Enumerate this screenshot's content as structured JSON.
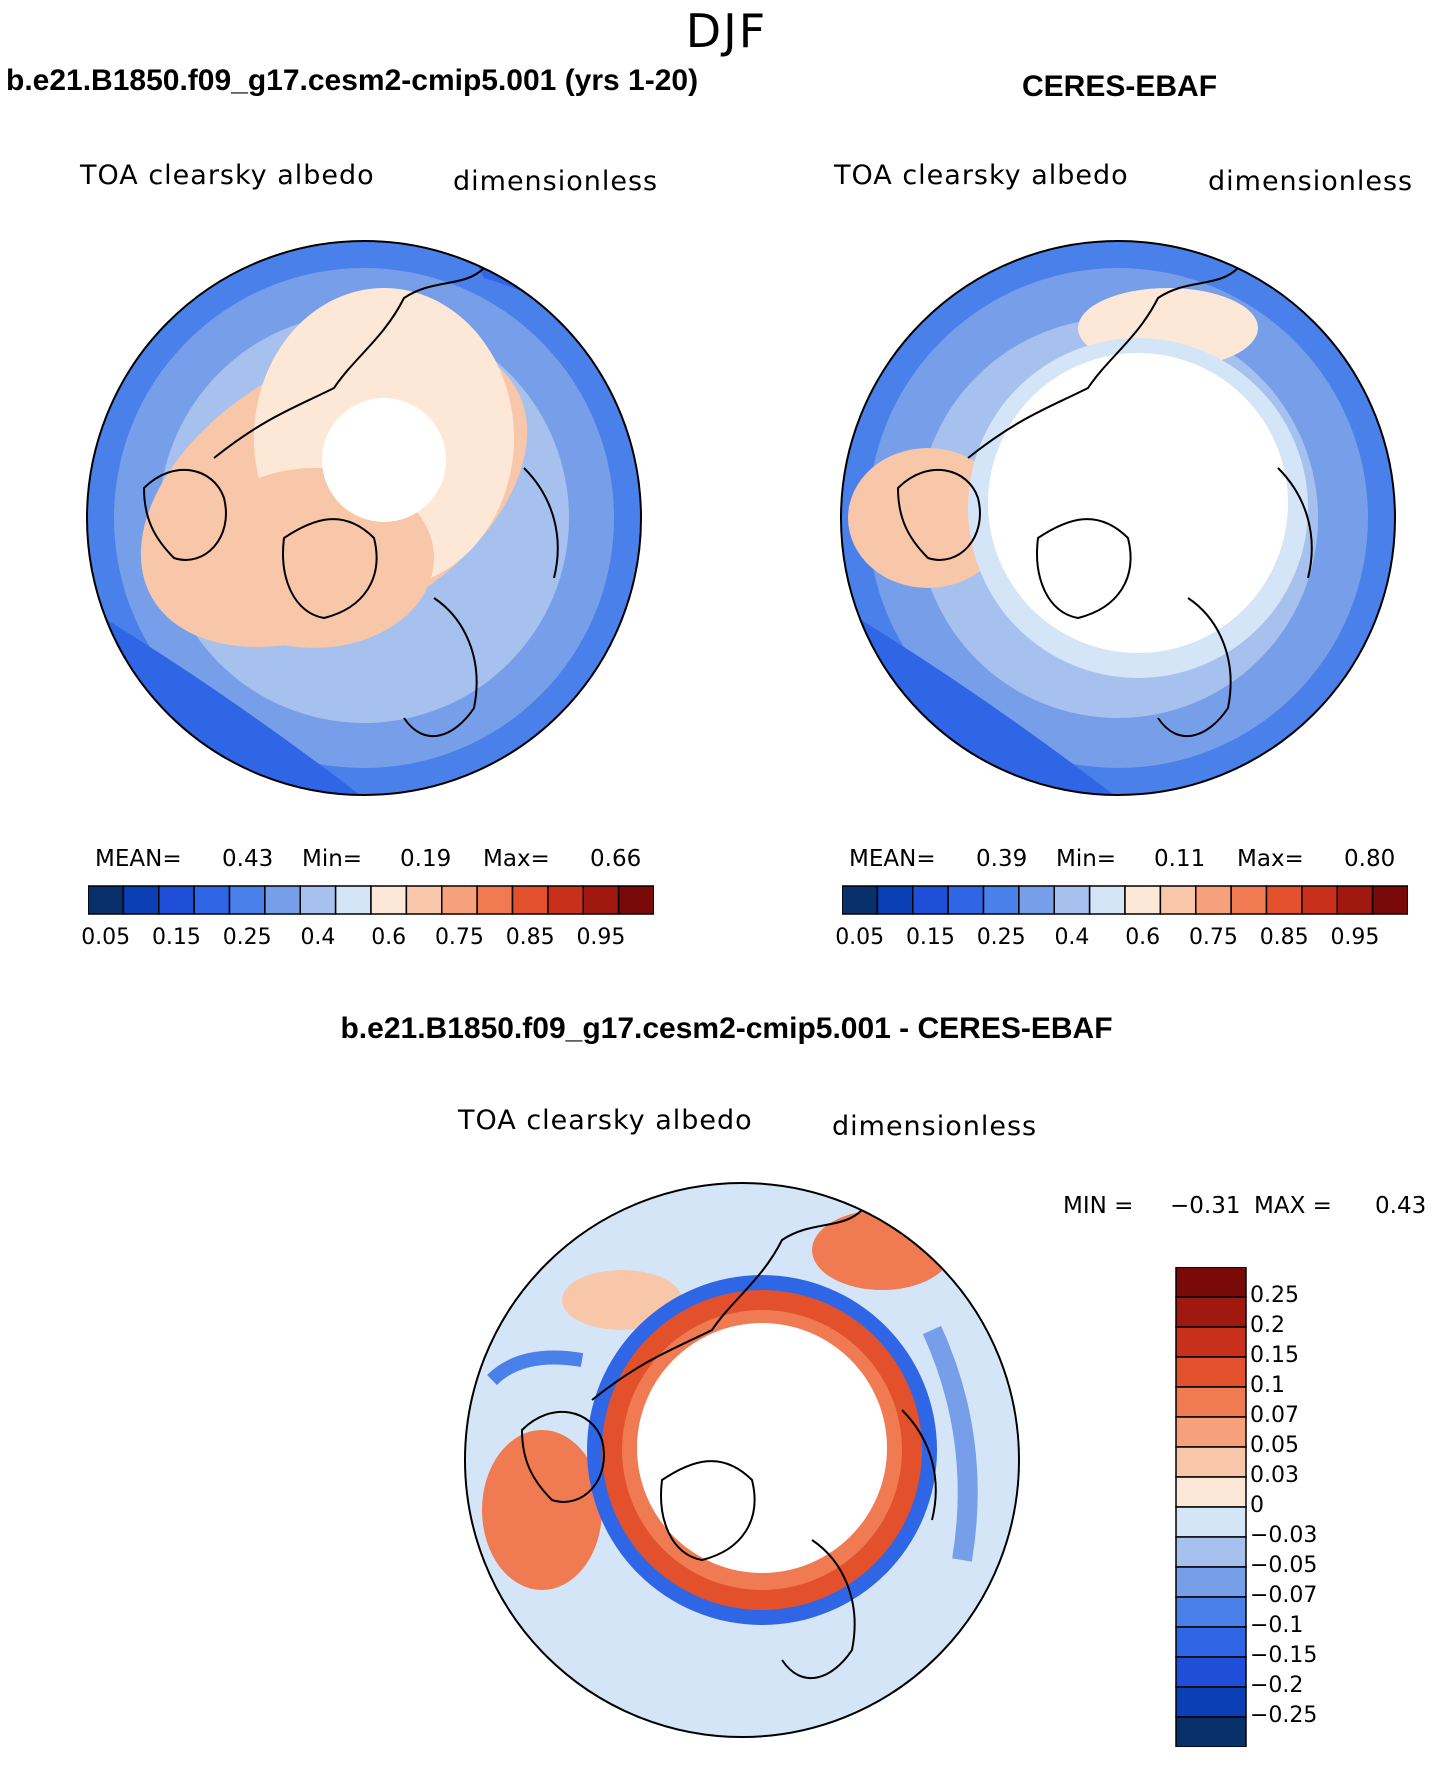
{
  "season": "DJF",
  "palette": [
    "#08306b",
    "#0a3fb5",
    "#1f4fd8",
    "#2f66e6",
    "#4a80ea",
    "#779ee8",
    "#a6c1ee",
    "#d5e5f8",
    "#fde8d8",
    "#f8c6a8",
    "#f6a07c",
    "#f07a52",
    "#e2502c",
    "#c8301c",
    "#a01810",
    "#7a0a08"
  ],
  "panels": {
    "model": {
      "title": "b.e21.B1850.f09_g17.cesm2-cmip5.001 (yrs 1-20)",
      "variable": "TOA clearsky albedo",
      "units": "dimensionless",
      "mean_label": "MEAN=",
      "mean": "0.43",
      "min_label": "Min=",
      "min": "0.19",
      "max_label": "Max=",
      "max": "0.66"
    },
    "obs": {
      "title": "CERES-EBAF",
      "variable": "TOA clearsky albedo",
      "units": "dimensionless",
      "mean_label": "MEAN=",
      "mean": "0.39",
      "min_label": "Min=",
      "min": "0.11",
      "max_label": "Max=",
      "max": "0.80"
    },
    "diff": {
      "title": "b.e21.B1850.f09_g17.cesm2-cmip5.001 - CERES-EBAF",
      "variable": "TOA clearsky albedo",
      "units": "dimensionless",
      "min_label": "MIN =",
      "min": "−0.31",
      "max_label": "MAX =",
      "max": "0.43"
    }
  },
  "chart_data": [
    {
      "type": "heatmap",
      "title": "b.e21.B1850.f09_g17.cesm2-cmip5.001 (yrs 1-20)",
      "variable": "TOA clearsky albedo",
      "projection": "north polar stereographic",
      "stats": {
        "mean": 0.43,
        "min": 0.19,
        "max": 0.66
      },
      "levels": [
        0.05,
        0.1,
        0.15,
        0.2,
        0.25,
        0.3,
        0.4,
        0.5,
        0.6,
        0.7,
        0.75,
        0.8,
        0.85,
        0.9,
        0.95
      ],
      "colorbar_tick_labels": [
        "0.05",
        "0.15",
        "0.25",
        "0.4",
        "0.6",
        "0.75",
        "0.85",
        "0.95"
      ]
    },
    {
      "type": "heatmap",
      "title": "CERES-EBAF",
      "variable": "TOA clearsky albedo",
      "projection": "north polar stereographic",
      "stats": {
        "mean": 0.39,
        "min": 0.11,
        "max": 0.8
      },
      "levels": [
        0.05,
        0.1,
        0.15,
        0.2,
        0.25,
        0.3,
        0.4,
        0.5,
        0.6,
        0.7,
        0.75,
        0.8,
        0.85,
        0.9,
        0.95
      ],
      "colorbar_tick_labels": [
        "0.05",
        "0.15",
        "0.25",
        "0.4",
        "0.6",
        "0.75",
        "0.85",
        "0.95"
      ]
    },
    {
      "type": "heatmap",
      "title": "b.e21.B1850.f09_g17.cesm2-cmip5.001 - CERES-EBAF",
      "variable": "TOA clearsky albedo",
      "projection": "north polar stereographic",
      "stats": {
        "min": -0.31,
        "max": 0.43
      },
      "levels": [
        -0.25,
        -0.2,
        -0.15,
        -0.1,
        -0.07,
        -0.05,
        -0.03,
        0,
        0.03,
        0.05,
        0.07,
        0.1,
        0.15,
        0.2,
        0.25
      ],
      "colorbar_tick_labels": [
        "0.25",
        "0.2",
        "0.15",
        "0.1",
        "0.07",
        "0.05",
        "0.03",
        "0",
        "−0.03",
        "−0.05",
        "−0.07",
        "−0.1",
        "−0.15",
        "−0.2",
        "−0.25"
      ]
    }
  ]
}
